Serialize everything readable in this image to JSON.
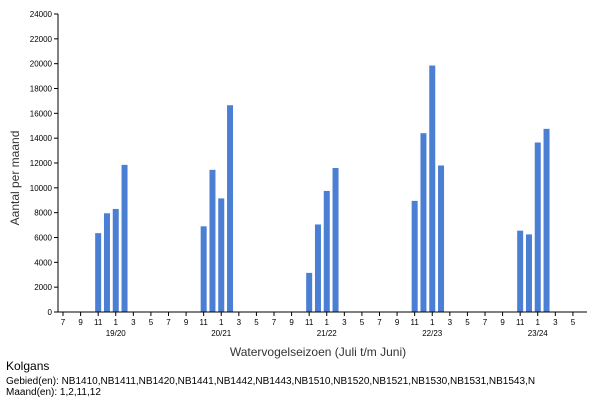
{
  "chart_data": {
    "type": "bar",
    "ylabel": "Aantal per maand",
    "xlabel": "Watervogelseizoen (Juli t/m Juni)",
    "ylim": [
      0,
      24000
    ],
    "yticks": [
      0,
      2000,
      4000,
      6000,
      8000,
      10000,
      12000,
      14000,
      16000,
      18000,
      20000,
      22000,
      24000
    ],
    "month_tick_labels": [
      "7",
      "9",
      "11",
      "1",
      "3",
      "5"
    ],
    "seasons": [
      {
        "label": "19/20",
        "bars": [
          {
            "month": 11,
            "value": 6350
          },
          {
            "month": 12,
            "value": 7950
          },
          {
            "month": 1,
            "value": 8300
          },
          {
            "month": 2,
            "value": 11850
          }
        ]
      },
      {
        "label": "20/21",
        "bars": [
          {
            "month": 11,
            "value": 6900
          },
          {
            "month": 12,
            "value": 11450
          },
          {
            "month": 1,
            "value": 9150
          },
          {
            "month": 2,
            "value": 16650
          }
        ]
      },
      {
        "label": "21/22",
        "bars": [
          {
            "month": 11,
            "value": 3150
          },
          {
            "month": 12,
            "value": 7050
          },
          {
            "month": 1,
            "value": 9750
          },
          {
            "month": 2,
            "value": 11600
          }
        ]
      },
      {
        "label": "22/23",
        "bars": [
          {
            "month": 11,
            "value": 8950
          },
          {
            "month": 12,
            "value": 14400
          },
          {
            "month": 1,
            "value": 19850
          },
          {
            "month": 2,
            "value": 11800
          }
        ]
      },
      {
        "label": "23/24",
        "bars": [
          {
            "month": 11,
            "value": 6550
          },
          {
            "month": 12,
            "value": 6250
          },
          {
            "month": 1,
            "value": 13650
          },
          {
            "month": 2,
            "value": 14750
          }
        ]
      }
    ],
    "bar_color": "#4a7fd4",
    "grid": false
  },
  "caption": {
    "species": "Kolgans",
    "areas": "Gebied(en): NB1410,NB1411,NB1420,NB1441,NB1442,NB1443,NB1510,NB1520,NB1521,NB1530,NB1531,NB1543,N",
    "months": "Maand(en): 1,2,11,12"
  }
}
